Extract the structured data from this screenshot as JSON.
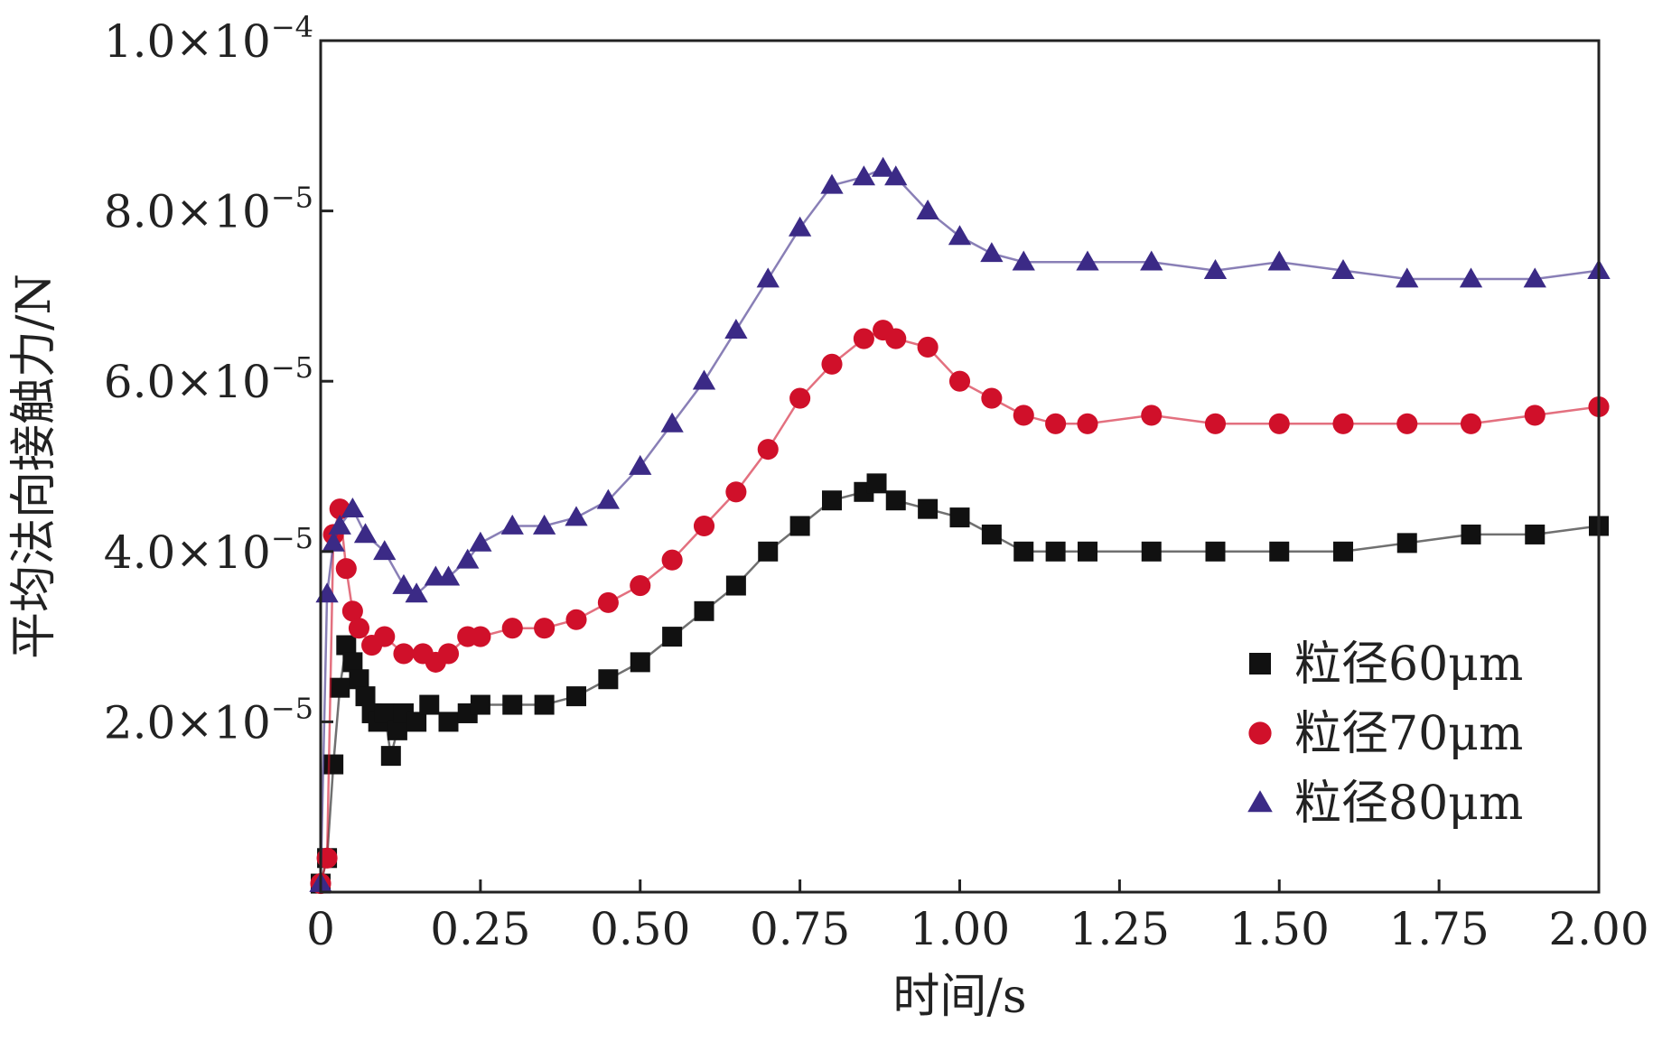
{
  "chart_data": {
    "type": "scatter",
    "title": "",
    "xlabel": "时间/s",
    "ylabel": "平均法向接触力/N",
    "xlim": [
      0,
      2.0
    ],
    "ylim": [
      0,
      0.0001
    ],
    "x_ticks": [
      0,
      0.25,
      0.5,
      0.75,
      1.0,
      1.25,
      1.5,
      1.75,
      2.0
    ],
    "x_tick_labels": [
      "0",
      "0.25",
      "0.50",
      "0.75",
      "1.00",
      "1.25",
      "1.50",
      "1.75",
      "2.00"
    ],
    "y_ticks": [
      {
        "value": 2e-05,
        "mantissa": "2.0",
        "exponent": "−5"
      },
      {
        "value": 4e-05,
        "mantissa": "4.0",
        "exponent": "−5"
      },
      {
        "value": 6e-05,
        "mantissa": "6.0",
        "exponent": "−5"
      },
      {
        "value": 8e-05,
        "mantissa": "8.0",
        "exponent": "−5"
      },
      {
        "value": 0.0001,
        "mantissa": "1.0",
        "exponent": "−4"
      }
    ],
    "y_tick_times": "×10",
    "grid": false,
    "legend_position": "bottom-right",
    "series": [
      {
        "name": "粒径60μm",
        "marker": "square",
        "color": "#111111",
        "x": [
          0,
          0.01,
          0.02,
          0.03,
          0.04,
          0.05,
          0.06,
          0.07,
          0.08,
          0.09,
          0.1,
          0.11,
          0.12,
          0.13,
          0.15,
          0.17,
          0.2,
          0.23,
          0.25,
          0.3,
          0.35,
          0.4,
          0.45,
          0.5,
          0.55,
          0.6,
          0.65,
          0.7,
          0.75,
          0.8,
          0.85,
          0.87,
          0.9,
          0.95,
          1.0,
          1.05,
          1.1,
          1.15,
          1.2,
          1.3,
          1.4,
          1.5,
          1.6,
          1.7,
          1.8,
          1.9,
          2.0
        ],
        "y": [
          1e-06,
          4e-06,
          1.5e-05,
          2.4e-05,
          2.9e-05,
          2.7e-05,
          2.5e-05,
          2.3e-05,
          2.1e-05,
          2e-05,
          2.1e-05,
          1.6e-05,
          1.9e-05,
          2.1e-05,
          2e-05,
          2.2e-05,
          2e-05,
          2.1e-05,
          2.2e-05,
          2.2e-05,
          2.2e-05,
          2.3e-05,
          2.5e-05,
          2.7e-05,
          3e-05,
          3.3e-05,
          3.6e-05,
          4e-05,
          4.3e-05,
          4.6e-05,
          4.7e-05,
          4.8e-05,
          4.6e-05,
          4.5e-05,
          4.4e-05,
          4.2e-05,
          4e-05,
          4e-05,
          4e-05,
          4e-05,
          4e-05,
          4e-05,
          4e-05,
          4.1e-05,
          4.2e-05,
          4.2e-05,
          4.3e-05
        ]
      },
      {
        "name": "粒径70μm",
        "marker": "circle",
        "color": "#d0102a",
        "x": [
          0,
          0.01,
          0.02,
          0.03,
          0.04,
          0.05,
          0.06,
          0.08,
          0.1,
          0.13,
          0.16,
          0.18,
          0.2,
          0.23,
          0.25,
          0.3,
          0.35,
          0.4,
          0.45,
          0.5,
          0.55,
          0.6,
          0.65,
          0.7,
          0.75,
          0.8,
          0.85,
          0.88,
          0.9,
          0.95,
          1.0,
          1.05,
          1.1,
          1.15,
          1.2,
          1.3,
          1.4,
          1.5,
          1.6,
          1.7,
          1.8,
          1.9,
          2.0
        ],
        "y": [
          1e-06,
          4e-06,
          4.2e-05,
          4.5e-05,
          3.8e-05,
          3.3e-05,
          3.1e-05,
          2.9e-05,
          3e-05,
          2.8e-05,
          2.8e-05,
          2.7e-05,
          2.8e-05,
          3e-05,
          3e-05,
          3.1e-05,
          3.1e-05,
          3.2e-05,
          3.4e-05,
          3.6e-05,
          3.9e-05,
          4.3e-05,
          4.7e-05,
          5.2e-05,
          5.8e-05,
          6.2e-05,
          6.5e-05,
          6.6e-05,
          6.5e-05,
          6.4e-05,
          6e-05,
          5.8e-05,
          5.6e-05,
          5.5e-05,
          5.5e-05,
          5.6e-05,
          5.5e-05,
          5.5e-05,
          5.5e-05,
          5.5e-05,
          5.5e-05,
          5.6e-05,
          5.7e-05
        ]
      },
      {
        "name": "粒径80μm",
        "marker": "triangle",
        "color": "#3b2a86",
        "x": [
          0,
          0.01,
          0.02,
          0.03,
          0.05,
          0.07,
          0.1,
          0.13,
          0.15,
          0.18,
          0.2,
          0.23,
          0.25,
          0.3,
          0.35,
          0.4,
          0.45,
          0.5,
          0.55,
          0.6,
          0.65,
          0.7,
          0.75,
          0.8,
          0.85,
          0.88,
          0.9,
          0.95,
          1.0,
          1.05,
          1.1,
          1.2,
          1.3,
          1.4,
          1.5,
          1.6,
          1.7,
          1.8,
          1.9,
          2.0
        ],
        "y": [
          1e-06,
          3.5e-05,
          4.1e-05,
          4.3e-05,
          4.5e-05,
          4.2e-05,
          4e-05,
          3.6e-05,
          3.5e-05,
          3.7e-05,
          3.7e-05,
          3.9e-05,
          4.1e-05,
          4.3e-05,
          4.3e-05,
          4.4e-05,
          4.6e-05,
          5e-05,
          5.5e-05,
          6e-05,
          6.6e-05,
          7.2e-05,
          7.8e-05,
          8.3e-05,
          8.4e-05,
          8.5e-05,
          8.4e-05,
          8e-05,
          7.7e-05,
          7.5e-05,
          7.4e-05,
          7.4e-05,
          7.4e-05,
          7.3e-05,
          7.4e-05,
          7.3e-05,
          7.2e-05,
          7.2e-05,
          7.2e-05,
          7.3e-05
        ]
      }
    ]
  }
}
